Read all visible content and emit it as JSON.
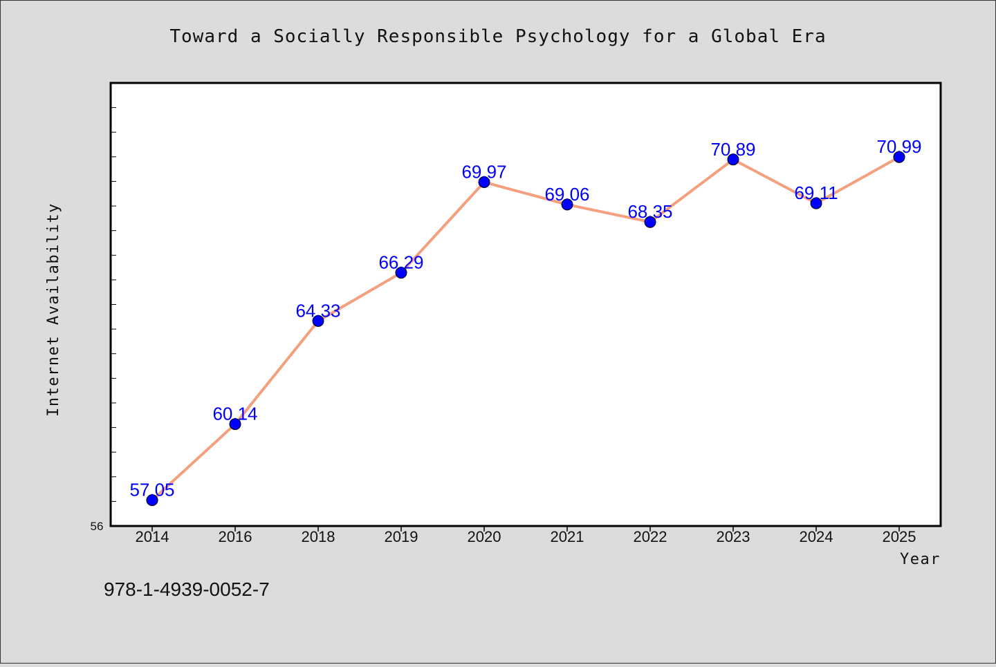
{
  "chart_data": {
    "type": "line",
    "title": "Toward a Socially Responsible Psychology for a Global Era",
    "xlabel": "Year",
    "ylabel": "Internet Availability",
    "categories": [
      "2014",
      "2016",
      "2018",
      "2019",
      "2020",
      "2021",
      "2022",
      "2023",
      "2024",
      "2025"
    ],
    "series": [
      {
        "values": [
          57.05,
          60.14,
          64.33,
          66.29,
          69.97,
          69.06,
          68.35,
          70.89,
          69.11,
          70.99
        ],
        "labels": [
          "57.05",
          "60.14",
          "64.33",
          "66.29",
          "69.97",
          "69.06",
          "68.35",
          "70.89",
          "69.11",
          "70.99"
        ]
      }
    ],
    "ylim": [
      56,
      74
    ],
    "y_min_label": "56",
    "grid": false,
    "line_color": "#f4a07f",
    "marker_color": "#0000ff",
    "label_color": "#0000ff",
    "background_color": "#dcdcdc",
    "plot_background": "#ffffff"
  },
  "footer": {
    "isbn": "978-1-4939-0052-7"
  }
}
